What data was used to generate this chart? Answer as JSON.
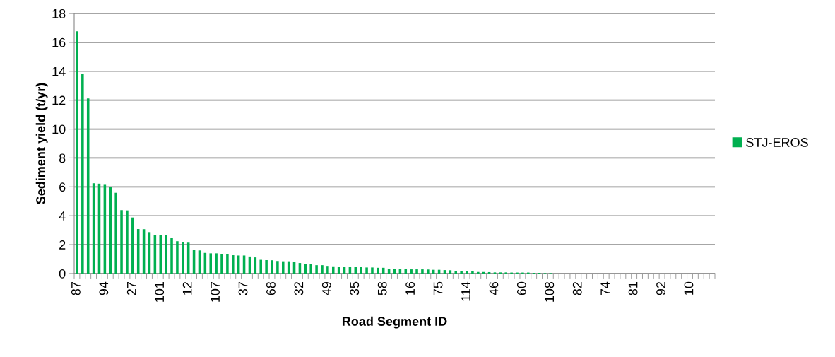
{
  "chart_data": {
    "type": "bar",
    "xlabel": "Road Segment ID",
    "ylabel": "Sediment yield (t/yr)",
    "categories": [
      "87",
      null,
      null,
      null,
      null,
      "94",
      null,
      null,
      null,
      null,
      "27",
      null,
      null,
      null,
      null,
      "101",
      null,
      null,
      null,
      null,
      "12",
      null,
      null,
      null,
      null,
      "107",
      null,
      null,
      null,
      null,
      "37",
      null,
      null,
      null,
      null,
      "68",
      null,
      null,
      null,
      null,
      "32",
      null,
      null,
      null,
      null,
      "49",
      null,
      null,
      null,
      null,
      "35",
      null,
      null,
      null,
      null,
      "58",
      null,
      null,
      null,
      null,
      "16",
      null,
      null,
      null,
      null,
      "75",
      null,
      null,
      null,
      null,
      "114",
      null,
      null,
      null,
      null,
      "46",
      null,
      null,
      null,
      null,
      "60",
      null,
      null,
      null,
      null,
      "108",
      null,
      null,
      null,
      null,
      "82",
      null,
      null,
      null,
      null,
      "74",
      null,
      null,
      null,
      null,
      "81",
      null,
      null,
      null,
      null,
      "92",
      null,
      null,
      null,
      null,
      "10",
      null,
      null,
      null,
      null
    ],
    "series": [
      {
        "name": "STJ-EROS",
        "color": "#00b050",
        "values": [
          16.77,
          13.8,
          12.12,
          6.25,
          6.22,
          6.19,
          5.97,
          5.59,
          4.39,
          4.37,
          3.88,
          3.08,
          3.07,
          2.87,
          2.68,
          2.68,
          2.68,
          2.45,
          2.24,
          2.2,
          2.14,
          1.65,
          1.6,
          1.43,
          1.4,
          1.4,
          1.37,
          1.33,
          1.27,
          1.25,
          1.25,
          1.18,
          1.12,
          0.95,
          0.93,
          0.92,
          0.87,
          0.85,
          0.85,
          0.82,
          0.73,
          0.68,
          0.68,
          0.58,
          0.58,
          0.53,
          0.5,
          0.48,
          0.48,
          0.48,
          0.47,
          0.45,
          0.42,
          0.42,
          0.4,
          0.4,
          0.33,
          0.33,
          0.31,
          0.3,
          0.29,
          0.29,
          0.29,
          0.28,
          0.26,
          0.26,
          0.24,
          0.23,
          0.18,
          0.16,
          0.16,
          0.15,
          0.11,
          0.11,
          0.1,
          0.08,
          0.08,
          0.08,
          0.07,
          0.07,
          0.07,
          0.07,
          0.05,
          0.05,
          0.03,
          0.03,
          0,
          0,
          0,
          0,
          0,
          0,
          0,
          0,
          0,
          0,
          0,
          0,
          0,
          0,
          0,
          0,
          0,
          0,
          0,
          0,
          0,
          0,
          0,
          0,
          0,
          0,
          0,
          0,
          0
        ]
      }
    ],
    "ylim": [
      0,
      18
    ],
    "yticks": [
      0,
      2,
      4,
      6,
      8,
      10,
      12,
      14,
      16,
      18
    ],
    "grid": "y",
    "legend": "right"
  }
}
